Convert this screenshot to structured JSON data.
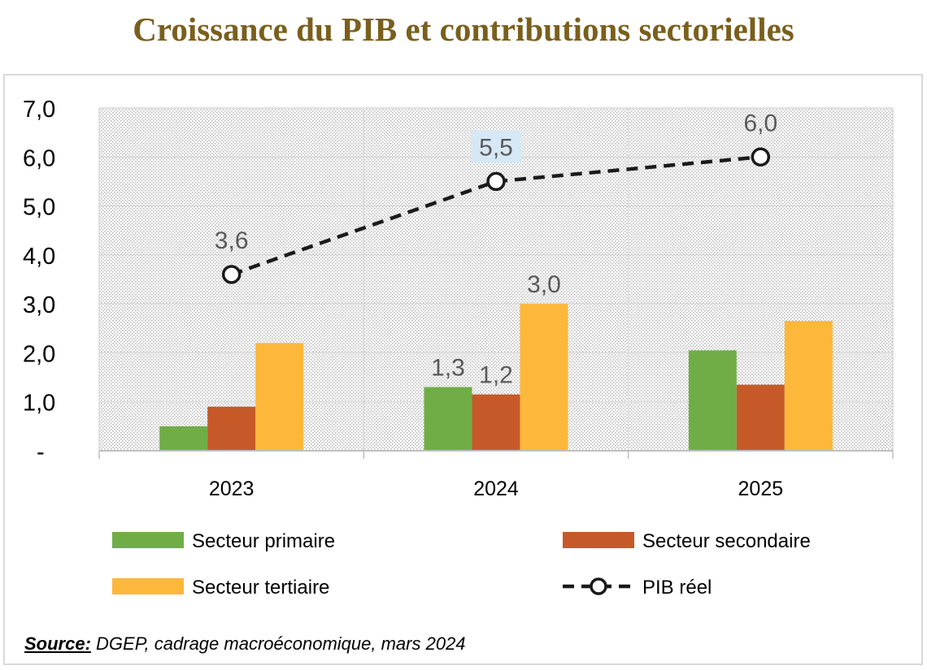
{
  "title": "Croissance du PIB et contributions sectorielles",
  "source": {
    "label": "Source:",
    "text": " DGEP, cadrage macroéconomique, mars 2024"
  },
  "colors": {
    "primaire": "#70ad47",
    "secondaire": "#c55a28",
    "tertiaire": "#fdb73b",
    "pib": "#1a1a1a",
    "label_highlight": "#d6e8f5"
  },
  "chart_data": {
    "type": "bar",
    "categories": [
      "2023",
      "2024",
      "2025"
    ],
    "ylim": [
      0,
      7
    ],
    "yticks": [
      "-",
      "1,0",
      "2,0",
      "3,0",
      "4,0",
      "5,0",
      "6,0",
      "7,0"
    ],
    "grid": true,
    "legend_position": "bottom",
    "series": [
      {
        "name": "Secteur primaire",
        "key": "primaire",
        "type": "bar",
        "values": [
          0.5,
          1.3,
          2.05
        ],
        "data_labels": [
          "",
          "1,3",
          ""
        ]
      },
      {
        "name": "Secteur secondaire",
        "key": "secondaire",
        "type": "bar",
        "values": [
          0.9,
          1.15,
          1.35
        ],
        "data_labels": [
          "",
          "1,2",
          ""
        ]
      },
      {
        "name": "Secteur tertiaire",
        "key": "tertiaire",
        "type": "bar",
        "values": [
          2.2,
          3.0,
          2.65
        ],
        "data_labels": [
          "",
          "3,0",
          ""
        ]
      },
      {
        "name": "PIB réel",
        "key": "pib",
        "type": "line",
        "values": [
          3.6,
          5.5,
          6.0
        ],
        "data_labels": [
          "3,6",
          "5,5",
          "6,0"
        ]
      }
    ]
  }
}
